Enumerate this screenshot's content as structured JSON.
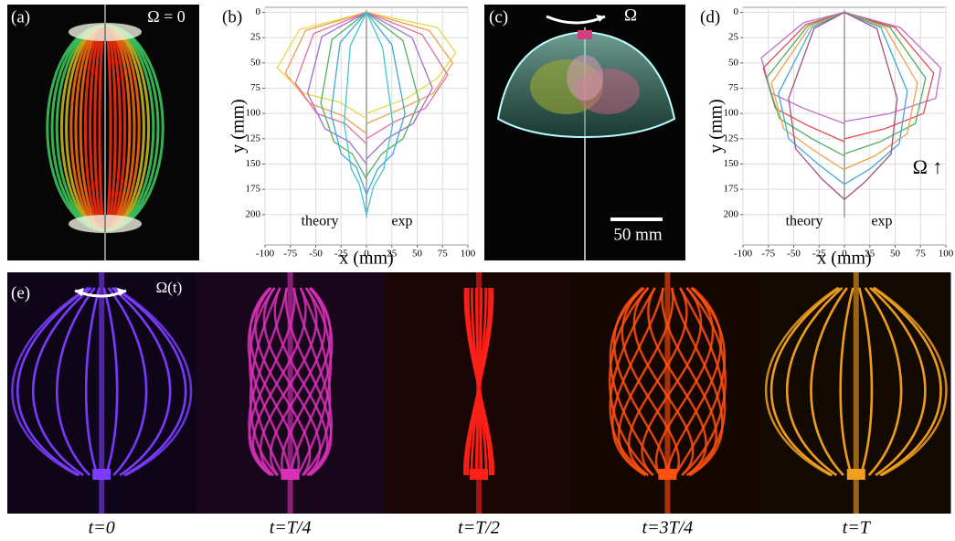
{
  "panels": {
    "a": {
      "label": "(a)",
      "annotation": "Ω = 0"
    },
    "c": {
      "label": "(c)",
      "annotation": "Ω",
      "scale_bar": "50 mm"
    },
    "e": {
      "label": "(e)",
      "annotation": "Ω(t)",
      "captions": [
        "t=0",
        "t=T/4",
        "t=T/2",
        "t=3T/4",
        "t=T"
      ]
    }
  },
  "chart_data": [
    {
      "type": "line",
      "panel_label": "(b)",
      "xlabel": "x (mm)",
      "ylabel": "y (mm)",
      "annotations": [
        "theory",
        "exp"
      ],
      "xlim": [
        -100,
        100
      ],
      "ylim": [
        -5,
        230
      ],
      "invert_y": true,
      "grid": true,
      "xticks": [
        -100,
        -75,
        -50,
        -25,
        0,
        25,
        50,
        75,
        100
      ],
      "yticks": [
        0,
        25,
        50,
        75,
        100,
        125,
        150,
        175,
        200
      ],
      "series": [
        {
          "color": "#e8d84a",
          "x": [
            0,
            -66,
            -88,
            -62,
            -26,
            0
          ],
          "values": [
            0,
            17,
            55,
            80,
            89,
            105
          ]
        },
        {
          "color": "#f0a050",
          "x": [
            0,
            -60,
            -80,
            -56,
            -24,
            0
          ],
          "values": [
            0,
            18,
            60,
            90,
            102,
            120
          ]
        },
        {
          "color": "#e070a0",
          "x": [
            0,
            -52,
            -70,
            -49,
            -21,
            0
          ],
          "values": [
            0,
            21,
            70,
            100,
            110,
            130
          ]
        },
        {
          "color": "#a070d0",
          "x": [
            0,
            -44,
            -58,
            -41,
            -17,
            0
          ],
          "values": [
            0,
            24,
            80,
            115,
            128,
            150
          ]
        },
        {
          "color": "#50b060",
          "x": [
            0,
            -34,
            -45,
            -32,
            -14,
            0
          ],
          "values": [
            0,
            27,
            90,
            128,
            140,
            165
          ]
        },
        {
          "color": "#40a8d8",
          "x": [
            0,
            -26,
            -35,
            -25,
            -10,
            0
          ],
          "values": [
            0,
            30,
            100,
            140,
            153,
            180
          ]
        },
        {
          "color": "#40c8c8",
          "x": [
            0,
            -16,
            -22,
            -15,
            -7,
            0
          ],
          "values": [
            0,
            33,
            110,
            155,
            170,
            200
          ]
        },
        {
          "color": "#e8d84a",
          "x": [
            0,
            70,
            88,
            70,
            40,
            0
          ],
          "values": [
            0,
            15,
            40,
            65,
            85,
            100
          ]
        },
        {
          "color": "#f0a050",
          "x": [
            0,
            62,
            85,
            66,
            35,
            0
          ],
          "values": [
            0,
            18,
            50,
            80,
            95,
            110
          ]
        },
        {
          "color": "#e070a0",
          "x": [
            0,
            55,
            80,
            58,
            28,
            0
          ],
          "values": [
            0,
            22,
            62,
            95,
            108,
            125
          ]
        },
        {
          "color": "#a070d0",
          "x": [
            0,
            45,
            65,
            46,
            20,
            0
          ],
          "values": [
            0,
            25,
            75,
            110,
            125,
            145
          ]
        },
        {
          "color": "#50b060",
          "x": [
            0,
            36,
            52,
            36,
            15,
            0
          ],
          "values": [
            0,
            28,
            88,
            125,
            140,
            162
          ]
        },
        {
          "color": "#40a8d8",
          "x": [
            0,
            25,
            38,
            26,
            11,
            0
          ],
          "values": [
            0,
            32,
            100,
            140,
            155,
            180
          ]
        },
        {
          "color": "#40c8c8",
          "x": [
            0,
            16,
            26,
            17,
            7,
            0
          ],
          "values": [
            0,
            35,
            110,
            155,
            172,
            200
          ]
        }
      ]
    },
    {
      "type": "line",
      "panel_label": "(d)",
      "xlabel": "x (mm)",
      "ylabel": "y (mm)",
      "annotations": [
        "theory",
        "exp",
        "Ω ↑"
      ],
      "xlim": [
        -100,
        100
      ],
      "ylim": [
        -5,
        230
      ],
      "invert_y": true,
      "grid": true,
      "xticks": [
        -100,
        -75,
        -50,
        -25,
        0,
        25,
        50,
        75,
        100
      ],
      "yticks": [
        0,
        25,
        50,
        75,
        100,
        125,
        150,
        175,
        200
      ],
      "series": [
        {
          "color": "#c070d0",
          "x": [
            0,
            -40,
            -82,
            -72,
            -40,
            0
          ],
          "values": [
            0,
            10,
            45,
            80,
            95,
            110
          ]
        },
        {
          "color": "#e05050",
          "x": [
            0,
            -38,
            -80,
            -68,
            -36,
            0
          ],
          "values": [
            0,
            12,
            55,
            95,
            112,
            128
          ]
        },
        {
          "color": "#50b060",
          "x": [
            0,
            -36,
            -77,
            -64,
            -32,
            0
          ],
          "values": [
            0,
            13,
            65,
            105,
            125,
            142
          ]
        },
        {
          "color": "#f0a050",
          "x": [
            0,
            -34,
            -72,
            -60,
            -28,
            0
          ],
          "values": [
            0,
            14,
            70,
            115,
            138,
            156
          ]
        },
        {
          "color": "#40a8d8",
          "x": [
            0,
            -32,
            -65,
            -55,
            -26,
            0
          ],
          "values": [
            0,
            15,
            80,
            125,
            150,
            170
          ]
        },
        {
          "color": "#a05080",
          "x": [
            0,
            -30,
            -55,
            -48,
            -22,
            0
          ],
          "values": [
            0,
            16,
            85,
            135,
            165,
            185
          ]
        },
        {
          "color": "#c070d0",
          "x": [
            0,
            55,
            95,
            90,
            45,
            0
          ],
          "values": [
            0,
            15,
            55,
            85,
            100,
            108
          ]
        },
        {
          "color": "#e05050",
          "x": [
            0,
            50,
            88,
            78,
            40,
            0
          ],
          "values": [
            0,
            15,
            60,
            100,
            115,
            125
          ]
        },
        {
          "color": "#50b060",
          "x": [
            0,
            45,
            80,
            70,
            35,
            0
          ],
          "values": [
            0,
            15,
            65,
            110,
            128,
            140
          ]
        },
        {
          "color": "#f0a050",
          "x": [
            0,
            40,
            72,
            62,
            30,
            0
          ],
          "values": [
            0,
            15,
            70,
            120,
            142,
            155
          ]
        },
        {
          "color": "#40a8d8",
          "x": [
            0,
            36,
            62,
            54,
            25,
            0
          ],
          "values": [
            0,
            15,
            78,
            130,
            155,
            170
          ]
        },
        {
          "color": "#a05080",
          "x": [
            0,
            32,
            52,
            46,
            20,
            0
          ],
          "values": [
            0,
            16,
            85,
            140,
            168,
            185
          ]
        }
      ]
    }
  ]
}
